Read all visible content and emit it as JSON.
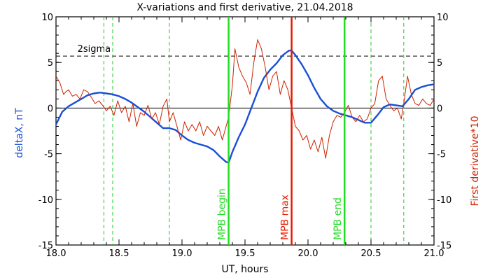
{
  "chart_data": {
    "type": "line",
    "title": "X-variations and first derivative, 21.04.2018",
    "xlabel": "UT, hours",
    "ylabel_left": "deltaX, nT",
    "ylabel_right": "First derivative*10",
    "xlim": [
      18.0,
      21.0
    ],
    "ylim": [
      -15,
      10
    ],
    "xticks": [
      "18.0",
      "18.5",
      "19.0",
      "19.5",
      "20.0",
      "20.5",
      "21.0"
    ],
    "yticks": [
      "-15",
      "-10",
      "-5",
      "0",
      "5",
      "10"
    ],
    "sigma_label": "2sigma",
    "sigma_level": 5.7,
    "colors": {
      "deltaX": "#1a4fd6",
      "derivative": "#cc2200",
      "mpb_edges": "#22dd22",
      "mpb_max": "#e81a00",
      "dashed": "#22cc22"
    },
    "dashed_verticals": [
      18.38,
      18.45,
      18.9,
      20.5,
      20.76
    ],
    "markers": [
      {
        "x": 19.37,
        "label": "MPB begin",
        "kind": "edge"
      },
      {
        "x": 19.87,
        "label": "MPB max",
        "kind": "max"
      },
      {
        "x": 20.29,
        "label": "MPB end",
        "kind": "edge"
      }
    ],
    "series": [
      {
        "id": "deltaX",
        "x": [
          18.0,
          18.05,
          18.1,
          18.15,
          18.2,
          18.25,
          18.3,
          18.35,
          18.4,
          18.45,
          18.5,
          18.55,
          18.6,
          18.65,
          18.7,
          18.75,
          18.8,
          18.85,
          18.9,
          18.95,
          19.0,
          19.05,
          19.1,
          19.15,
          19.2,
          19.25,
          19.3,
          19.35,
          19.37,
          19.4,
          19.45,
          19.5,
          19.55,
          19.6,
          19.65,
          19.7,
          19.75,
          19.8,
          19.85,
          19.87,
          19.9,
          19.95,
          20.0,
          20.05,
          20.1,
          20.15,
          20.2,
          20.25,
          20.3,
          20.35,
          20.4,
          20.45,
          20.5,
          20.55,
          20.6,
          20.65,
          20.7,
          20.75,
          20.8,
          20.85,
          20.9,
          20.95,
          21.0
        ],
        "y": [
          -1.8,
          -0.4,
          0.2,
          0.6,
          1.0,
          1.4,
          1.6,
          1.7,
          1.6,
          1.5,
          1.3,
          1.0,
          0.6,
          0.1,
          -0.4,
          -1.0,
          -1.6,
          -2.2,
          -2.2,
          -2.4,
          -3.0,
          -3.5,
          -3.8,
          -4.0,
          -4.2,
          -4.6,
          -5.3,
          -5.9,
          -6.0,
          -4.8,
          -3.2,
          -1.8,
          0.0,
          1.8,
          3.3,
          4.2,
          4.9,
          5.8,
          6.3,
          6.3,
          5.8,
          4.8,
          3.6,
          2.2,
          1.0,
          0.2,
          -0.3,
          -0.6,
          -0.8,
          -1.0,
          -1.3,
          -1.6,
          -1.6,
          -0.8,
          0.1,
          0.4,
          0.3,
          0.2,
          1.0,
          2.0,
          2.3,
          2.5,
          2.6
        ]
      },
      {
        "id": "derivative",
        "x": [
          18.0,
          18.03,
          18.06,
          18.08,
          18.1,
          18.13,
          18.16,
          18.19,
          18.22,
          18.25,
          18.28,
          18.31,
          18.34,
          18.37,
          18.4,
          18.43,
          18.46,
          18.49,
          18.52,
          18.55,
          18.58,
          18.61,
          18.64,
          18.67,
          18.7,
          18.73,
          18.76,
          18.79,
          18.82,
          18.85,
          18.88,
          18.9,
          18.93,
          18.96,
          18.99,
          19.02,
          19.05,
          19.08,
          19.11,
          19.14,
          19.17,
          19.2,
          19.23,
          19.26,
          19.29,
          19.32,
          19.35,
          19.37,
          19.4,
          19.42,
          19.45,
          19.48,
          19.51,
          19.54,
          19.57,
          19.6,
          19.63,
          19.66,
          19.69,
          19.72,
          19.75,
          19.78,
          19.81,
          19.84,
          19.87,
          19.9,
          19.93,
          19.96,
          19.99,
          20.02,
          20.05,
          20.08,
          20.11,
          20.14,
          20.17,
          20.2,
          20.23,
          20.26,
          20.29,
          20.32,
          20.35,
          20.38,
          20.41,
          20.44,
          20.47,
          20.5,
          20.53,
          20.56,
          20.59,
          20.62,
          20.65,
          20.68,
          20.71,
          20.74,
          20.76,
          20.79,
          20.82,
          20.85,
          20.88,
          20.91,
          20.94,
          20.97,
          21.0
        ],
        "y": [
          3.5,
          2.8,
          1.5,
          1.8,
          2.0,
          1.3,
          1.5,
          1.0,
          2.0,
          1.8,
          1.2,
          0.5,
          0.8,
          0.3,
          -0.3,
          0.2,
          -0.8,
          0.8,
          -0.5,
          0.2,
          -1.5,
          0.5,
          -2.0,
          -0.5,
          -0.8,
          0.3,
          -1.2,
          -0.5,
          -1.8,
          0.2,
          1.0,
          -1.5,
          -0.5,
          -2.0,
          -3.5,
          -1.5,
          -2.5,
          -1.8,
          -2.5,
          -1.5,
          -3.0,
          -2.0,
          -2.5,
          -3.0,
          -2.0,
          -3.5,
          -2.0,
          -1.0,
          2.5,
          6.5,
          4.5,
          3.5,
          2.8,
          1.5,
          5.0,
          7.5,
          6.5,
          4.5,
          2.0,
          3.5,
          4.0,
          1.5,
          3.0,
          2.0,
          0.0,
          -2.0,
          -2.5,
          -3.5,
          -3.0,
          -4.5,
          -3.5,
          -4.8,
          -3.2,
          -5.5,
          -3.0,
          -1.5,
          -0.8,
          -1.0,
          -0.5,
          0.3,
          -1.0,
          -1.5,
          -0.8,
          -1.5,
          -1.2,
          0.0,
          0.5,
          3.0,
          3.5,
          1.0,
          0.3,
          -0.3,
          0.0,
          -1.2,
          0.5,
          3.5,
          1.5,
          0.5,
          0.3,
          1.0,
          0.5,
          0.3,
          1.0
        ]
      }
    ]
  }
}
